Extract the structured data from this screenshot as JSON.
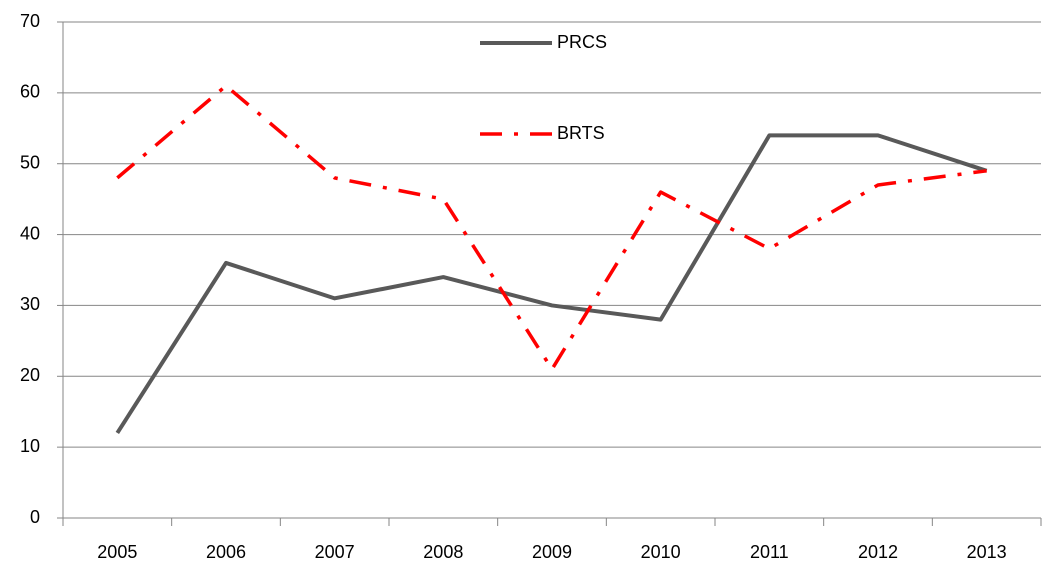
{
  "chart_data": {
    "type": "line",
    "categories": [
      "2005",
      "2006",
      "2007",
      "2008",
      "2009",
      "2010",
      "2011",
      "2012",
      "2013"
    ],
    "series": [
      {
        "name": "PRCS",
        "color": "#595959",
        "values": [
          12,
          36,
          31,
          34,
          30,
          28,
          54,
          54,
          49
        ]
      },
      {
        "name": "BRTS",
        "color": "#ff0000",
        "values": [
          48,
          61,
          48,
          45,
          21,
          46,
          38,
          47,
          49
        ]
      }
    ],
    "ylim": [
      0,
      70
    ],
    "yticks": [
      0,
      10,
      20,
      30,
      40,
      50,
      60,
      70
    ],
    "grid": true,
    "legend": "top"
  }
}
